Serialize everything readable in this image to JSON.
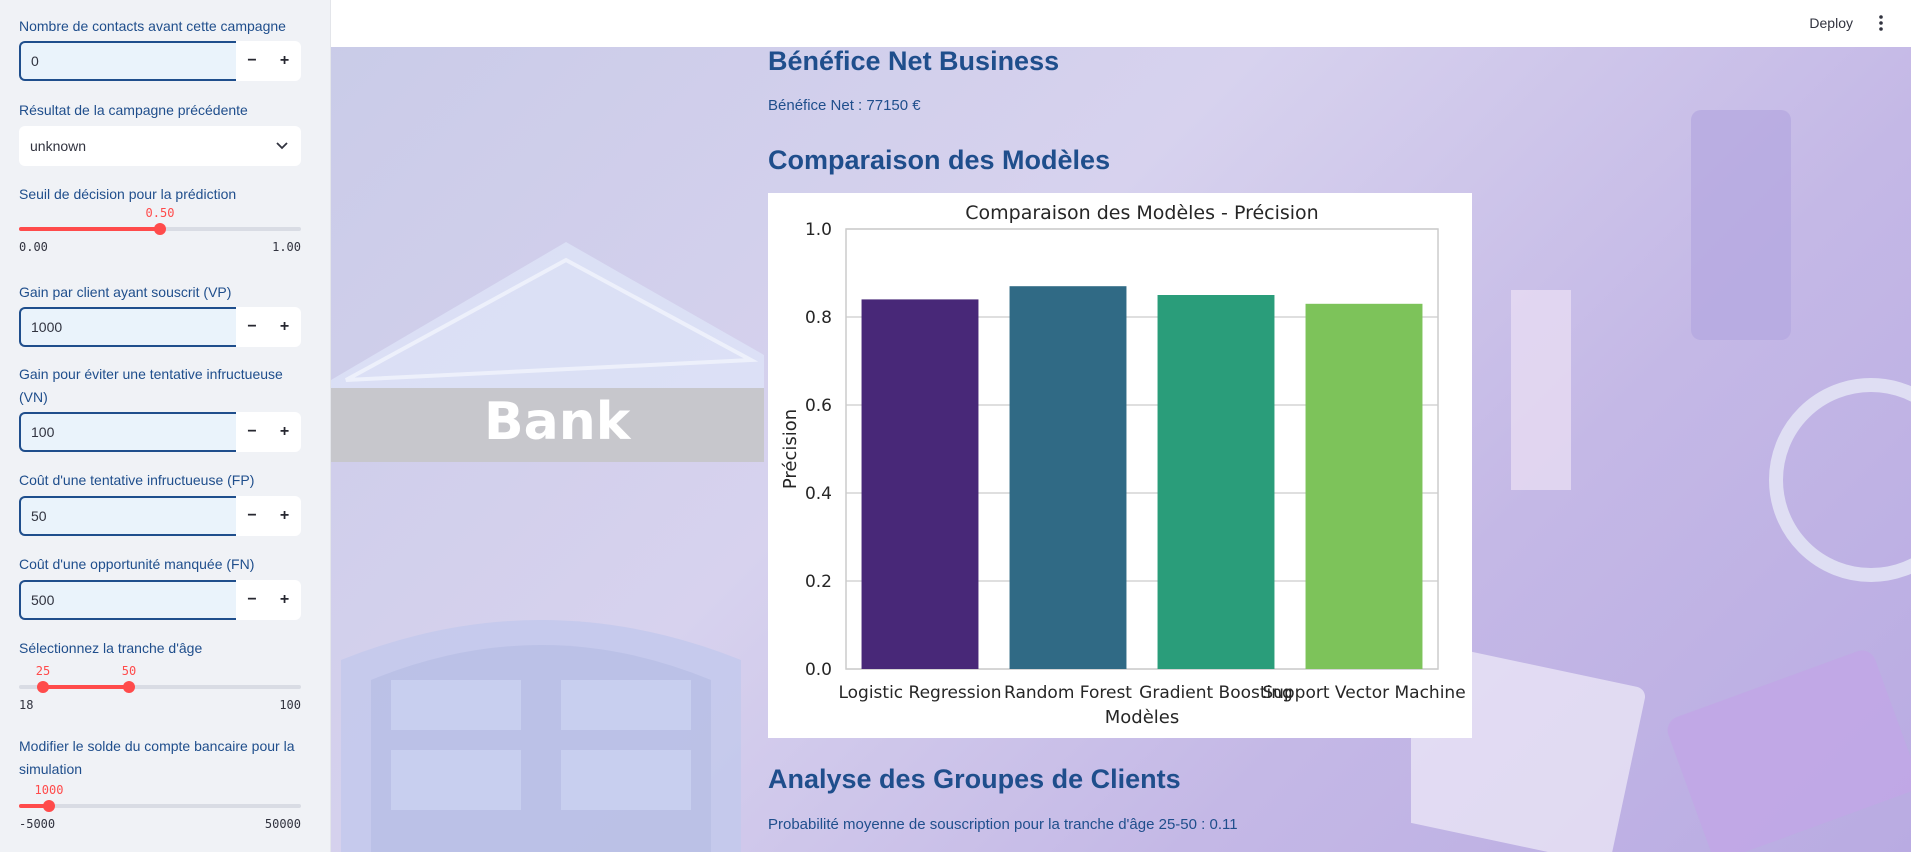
{
  "sidebar": {
    "contacts_label": "Nombre de contacts avant cette campagne",
    "contacts_value": "0",
    "prev_result_label": "Résultat de la campagne précédente",
    "prev_result_value": "unknown",
    "threshold_label": "Seuil de décision pour la prédiction",
    "threshold_value": "0.50",
    "threshold_fraction": 0.5,
    "threshold_min": "0.00",
    "threshold_max": "1.00",
    "vp_label": "Gain par client ayant souscrit (VP)",
    "vp_value": "1000",
    "vn_label": "Gain pour éviter une tentative infructueuse (VN)",
    "vn_value": "100",
    "fp_label": "Coût d'une tentative infructueuse (FP)",
    "fp_value": "50",
    "fn_label": "Coût d'une opportunité manquée (FN)",
    "fn_value": "500",
    "age_label": "Sélectionnez la tranche d'âge",
    "age_low": "25",
    "age_high": "50",
    "age_min": "18",
    "age_max": "100",
    "balance_label": "Modifier le solde du compte bancaire pour la simulation",
    "balance_value": "1000",
    "balance_min": "-5000",
    "balance_max": "50000",
    "minus": "−",
    "plus": "+"
  },
  "header": {
    "deploy": "Deploy"
  },
  "background": {
    "bank_word": "Bank"
  },
  "main": {
    "net_title": "Bénéfice Net Business",
    "net_text": "Bénéfice Net : 77150 €",
    "models_title": "Comparaison des Modèles",
    "groups_title": "Analyse des Groupes de Clients",
    "groups_text": "Probabilité moyenne de souscription pour la tranche d'âge 25-50 : 0.11"
  },
  "chart_data": {
    "type": "bar",
    "title": "Comparaison des Modèles - Précision",
    "xlabel": "Modèles",
    "ylabel": "Précision",
    "categories": [
      "Logistic Regression",
      "Random Forest",
      "Gradient Boosting",
      "Support Vector Machine"
    ],
    "values": [
      0.84,
      0.87,
      0.85,
      0.83
    ],
    "colors": [
      "#482878",
      "#306a85",
      "#2a9d7a",
      "#7dc35a"
    ],
    "ylim": [
      0,
      1.0
    ],
    "yticks": [
      "0.0",
      "0.2",
      "0.4",
      "0.6",
      "0.8",
      "1.0"
    ],
    "grid": true
  }
}
